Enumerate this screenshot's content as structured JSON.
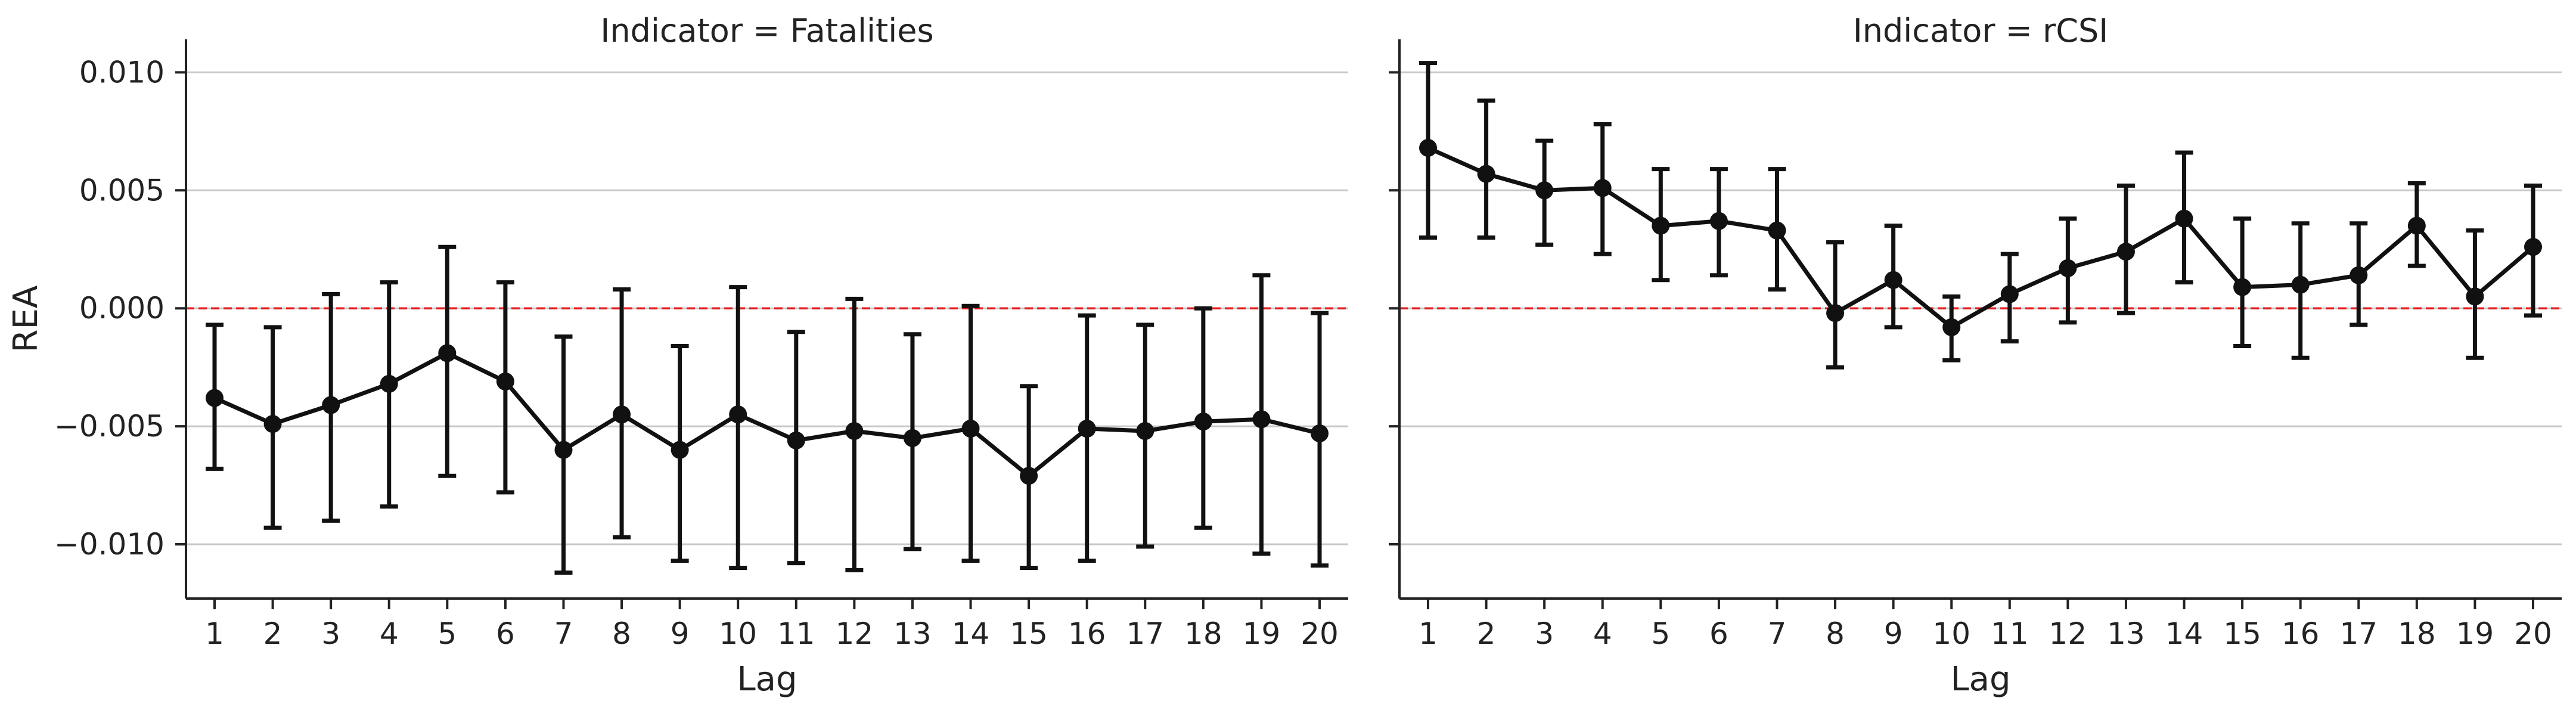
{
  "chart_data": [
    {
      "type": "line",
      "title": "Indicator = Fatalities",
      "xlabel": "Lag",
      "ylabel": "REA",
      "categories": [
        "1",
        "2",
        "3",
        "4",
        "5",
        "6",
        "7",
        "8",
        "9",
        "10",
        "11",
        "12",
        "13",
        "14",
        "15",
        "16",
        "17",
        "18",
        "19",
        "20"
      ],
      "yticks": [
        "0.010",
        "0.005",
        "0.000",
        "−0.005",
        "−0.010"
      ],
      "ytick_values": [
        0.01,
        0.005,
        0.0,
        -0.005,
        -0.01
      ],
      "ylim": [
        -0.0123,
        0.0114
      ],
      "grid": "horizontal",
      "reference_line": {
        "y": 0.0,
        "color": "#e31a1c",
        "style": "dashed"
      },
      "series": [
        {
          "color": "#111111",
          "values": [
            -0.0038,
            -0.0049,
            -0.0041,
            -0.0032,
            -0.0019,
            -0.0031,
            -0.006,
            -0.0045,
            -0.006,
            -0.0045,
            -0.0056,
            -0.0052,
            -0.0055,
            -0.0051,
            -0.0071,
            -0.0051,
            -0.0052,
            -0.0048,
            -0.0047,
            -0.0053
          ],
          "ci_low": [
            -0.0068,
            -0.0093,
            -0.009,
            -0.0084,
            -0.0071,
            -0.0078,
            -0.0112,
            -0.0097,
            -0.0107,
            -0.011,
            -0.0108,
            -0.0111,
            -0.0102,
            -0.0107,
            -0.011,
            -0.0107,
            -0.0101,
            -0.0093,
            -0.0104,
            -0.0109
          ],
          "ci_high": [
            -0.0007,
            -0.0008,
            0.0006,
            0.0011,
            0.0026,
            0.0011,
            -0.0012,
            0.0008,
            -0.0016,
            0.0009,
            -0.001,
            0.0004,
            -0.0011,
            0.0001,
            -0.0033,
            -0.0003,
            -0.0007,
            0.0,
            0.0014,
            -0.0002
          ]
        }
      ]
    },
    {
      "type": "line",
      "title": "Indicator = rCSI",
      "xlabel": "Lag",
      "ylabel": "",
      "categories": [
        "1",
        "2",
        "3",
        "4",
        "5",
        "6",
        "7",
        "8",
        "9",
        "10",
        "11",
        "12",
        "13",
        "14",
        "15",
        "16",
        "17",
        "18",
        "19",
        "20"
      ],
      "ylim": [
        -0.0123,
        0.0114
      ],
      "grid": "horizontal",
      "reference_line": {
        "y": 0.0,
        "color": "#e31a1c",
        "style": "dashed"
      },
      "series": [
        {
          "color": "#111111",
          "values": [
            0.0068,
            0.0057,
            0.005,
            0.0051,
            0.0035,
            0.0037,
            0.0033,
            -0.0002,
            0.0012,
            -0.0008,
            0.0006,
            0.0017,
            0.0024,
            0.0038,
            0.0009,
            0.001,
            0.0014,
            0.0035,
            0.0005,
            0.0026
          ],
          "ci_low": [
            0.003,
            0.003,
            0.0027,
            0.0023,
            0.0012,
            0.0014,
            0.0008,
            -0.0025,
            -0.0008,
            -0.0022,
            -0.0014,
            -0.0006,
            -0.0002,
            0.0011,
            -0.0016,
            -0.0021,
            -0.0007,
            0.0018,
            -0.0021,
            -0.0003
          ],
          "ci_high": [
            0.0104,
            0.0088,
            0.0071,
            0.0078,
            0.0059,
            0.0059,
            0.0059,
            0.0028,
            0.0035,
            0.0005,
            0.0023,
            0.0038,
            0.0052,
            0.0066,
            0.0038,
            0.0036,
            0.0036,
            0.0053,
            0.0033,
            0.0052
          ]
        }
      ]
    }
  ]
}
